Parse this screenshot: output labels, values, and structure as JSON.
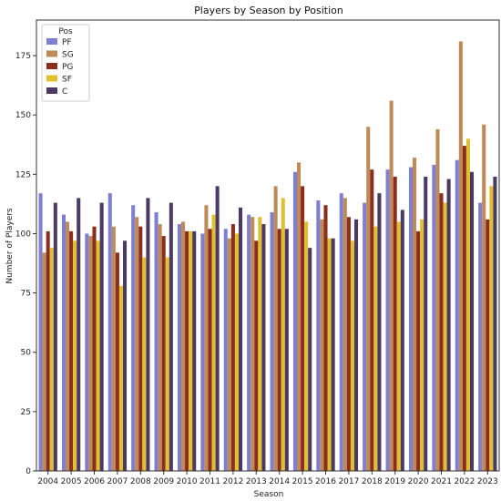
{
  "chart_data": {
    "type": "bar",
    "title": "Players by Season by Position",
    "xlabel": "Season",
    "ylabel": "Number of Players",
    "ylim": [
      0,
      190
    ],
    "yticks": [
      0,
      25,
      50,
      75,
      100,
      125,
      150,
      175
    ],
    "grid": false,
    "legend": {
      "title": "Pos",
      "placement": "top-left"
    },
    "categories": [
      "2004",
      "2005",
      "2006",
      "2007",
      "2008",
      "2009",
      "2010",
      "2011",
      "2012",
      "2013",
      "2014",
      "2015",
      "2016",
      "2017",
      "2018",
      "2019",
      "2020",
      "2021",
      "2022",
      "2023"
    ],
    "series": [
      {
        "name": "PF",
        "color": "#7f7fd1",
        "values": [
          117,
          108,
          100,
          117,
          112,
          109,
          104,
          100,
          102,
          108,
          109,
          126,
          114,
          117,
          113,
          127,
          128,
          129,
          131,
          113
        ]
      },
      {
        "name": "SG",
        "color": "#c08a58",
        "values": [
          92,
          105,
          99,
          103,
          107,
          104,
          105,
          112,
          98,
          107,
          120,
          130,
          106,
          115,
          145,
          156,
          132,
          144,
          181,
          146
        ]
      },
      {
        "name": "PG",
        "color": "#8b2e1e",
        "values": [
          101,
          101,
          103,
          92,
          103,
          99,
          101,
          102,
          104,
          97,
          102,
          120,
          112,
          107,
          127,
          124,
          101,
          117,
          137,
          106
        ]
      },
      {
        "name": "SF",
        "color": "#e0c030",
        "values": [
          94,
          97,
          97,
          78,
          90,
          90,
          101,
          108,
          100,
          107,
          115,
          105,
          98,
          97,
          103,
          105,
          106,
          113,
          140,
          120
        ]
      },
      {
        "name": "C",
        "color": "#4b3a63",
        "values": [
          113,
          115,
          113,
          97,
          115,
          113,
          101,
          120,
          111,
          104,
          102,
          94,
          98,
          106,
          117,
          110,
          124,
          123,
          126,
          124
        ]
      }
    ]
  }
}
